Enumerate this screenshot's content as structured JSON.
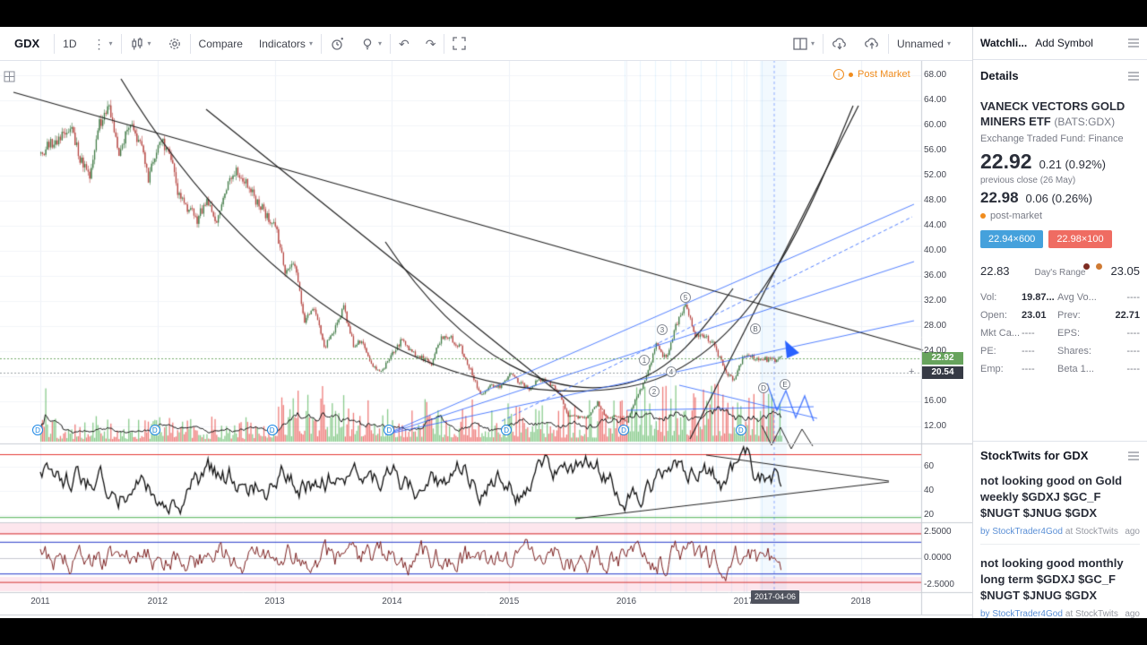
{
  "toolbar": {
    "symbol": "GDX",
    "interval": "1D",
    "compare_label": "Compare",
    "indicators_label": "Indicators",
    "layout_name": "Unnamed"
  },
  "watchlist": {
    "title": "Watchli...",
    "add_symbol": "Add Symbol"
  },
  "details": {
    "section_title": "Details",
    "name_line1": "VANECK VECTORS GOLD",
    "name_line2": "MINERS ETF",
    "exchange_code": "(BATS:GDX)",
    "fund_type": "Exchange Traded Fund: Finance",
    "last_price": "22.92",
    "last_change": "0.21 (0.92%)",
    "prev_close_note": "previous close (26 May)",
    "post_price": "22.98",
    "post_change": "0.06 (0.26%)",
    "post_label": "post-market",
    "bid": "22.94×600",
    "ask": "22.98×100",
    "bid_color": "#45a1dc",
    "ask_color": "#ef6c62",
    "range_low": "22.83",
    "range_high": "23.05",
    "range_label": "Day's Range",
    "stats": [
      {
        "l1": "Vol:",
        "v1": "19.87...",
        "l2": "Avg Vo...",
        "v2": "----"
      },
      {
        "l1": "Open:",
        "v1": "23.01",
        "l2": "Prev:",
        "v2": "22.71"
      },
      {
        "l1": "Mkt Ca...",
        "v1": "----",
        "l2": "EPS:",
        "v2": "----"
      },
      {
        "l1": "PE:",
        "v1": "----",
        "l2": "Shares:",
        "v2": "----"
      },
      {
        "l1": "Emp:",
        "v1": "----",
        "l2": "Beta 1...",
        "v2": "----"
      }
    ]
  },
  "stocktwits": {
    "section_title": "StockTwits for GDX",
    "messages": [
      {
        "text": "not looking good on Gold weekly $GDXJ $GC_F $NUGT $JNUG $GDX",
        "author": "by StockTrader4God",
        "source": "at StockTwits",
        "time": "ago"
      },
      {
        "text": "not looking good monthly long term $GDXJ $GC_F $NUGT $JNUG $GDX",
        "author": "by StockTrader4God",
        "source": "at StockTwits",
        "time": "ago"
      }
    ]
  },
  "chart_data": {
    "type": "candlestick",
    "symbol": "GDX",
    "interval": "1D",
    "session_label": "Post Market",
    "last_price_label": "22.92",
    "secondary_price_label": "20.54",
    "marked_date": "2017-04-06",
    "x_axis": {
      "labels": [
        "2011",
        "2012",
        "2013",
        "2014",
        "2015",
        "2016",
        "2017",
        "2018"
      ]
    },
    "price_axis": {
      "min": 12,
      "max": 68,
      "step": 4,
      "visible_ticks": [
        68,
        64,
        60,
        56,
        52,
        48,
        44,
        40,
        36,
        32,
        28,
        24,
        16,
        12
      ]
    },
    "series_monthly_close": {
      "start": "2011-01",
      "end": "2017-05",
      "values": [
        55.5,
        57,
        58,
        60,
        55,
        52,
        60,
        63,
        55,
        60,
        58,
        51.5,
        57,
        57,
        49.5,
        47,
        45,
        48,
        44,
        50,
        53,
        51,
        48,
        46,
        44,
        37,
        37.5,
        29,
        31,
        24.5,
        27,
        31,
        25,
        25.5,
        21.5,
        21,
        23.5,
        26,
        23.7,
        23,
        22,
        26.3,
        26,
        24.5,
        21,
        17,
        18.5,
        18.3,
        20.5,
        19,
        18,
        19.5,
        19,
        17.5,
        13.6,
        13.5,
        13.5,
        15.8,
        13.2,
        13.7,
        12.8,
        16.7,
        19.8,
        25,
        22.7,
        27.9,
        31.3,
        26.6,
        26.5,
        24.8,
        21,
        19.3,
        23.5,
        23,
        22.8,
        22.5,
        22.92
      ]
    },
    "oscillator_pane": {
      "ticks": [
        60,
        40,
        20
      ],
      "upper_level": 70,
      "lower_level": 20
    },
    "lower_pane": {
      "ticks": [
        "2.5000",
        "0.0000",
        "-2.5000"
      ],
      "blue_levels": [
        1.5,
        -1.5
      ],
      "red_levels": [
        2.3,
        -2.3
      ]
    },
    "dividend_marker_label": "D",
    "wave_labels": [
      "1",
      "2",
      "3",
      "4",
      "5",
      "B",
      "D",
      "E"
    ],
    "colors": {
      "up": "#3f7a45",
      "down": "#b5433f",
      "vol_up": "rgba(76,175,80,.65)",
      "vol_down": "rgba(229,57,53,.65)",
      "last_badge_bg": "#67a35c",
      "secondary_badge_bg": "#363a45",
      "drawing_blue": "#2962ff",
      "oscillator": "#111111",
      "lower_line": "#7b1f1f",
      "post_market": "#f08c1d",
      "date_badge_bg": "#50535e"
    }
  }
}
